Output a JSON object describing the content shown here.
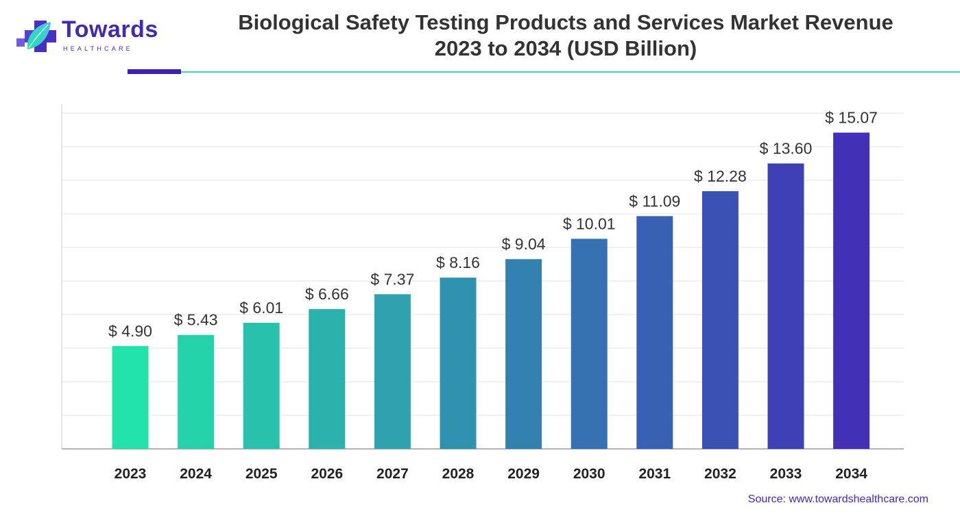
{
  "header": {
    "logo_name": "Towards",
    "logo_sub": "HEALTHCARE",
    "logo_icon": "cross-leaf-icon",
    "accent_color": "#3f1fb2",
    "line_color": "#39d4b4"
  },
  "chart_data": {
    "type": "bar",
    "title_line1": "Biological Safety Testing Products and Services Market Revenue",
    "title_line2": "2023 to 2034 (USD Billion)",
    "categories": [
      "2023",
      "2024",
      "2025",
      "2026",
      "2027",
      "2028",
      "2029",
      "2030",
      "2031",
      "2032",
      "2033",
      "2034"
    ],
    "values": [
      4.9,
      5.43,
      6.01,
      6.66,
      7.37,
      8.16,
      9.04,
      10.01,
      11.09,
      12.28,
      13.6,
      15.07
    ],
    "value_labels": [
      "$ 4.90",
      "$ 5.43",
      "$ 6.01",
      "$ 6.66",
      "$ 7.37",
      "$ 8.16",
      "$ 9.04",
      "$ 10.01",
      "$ 11.09",
      "$ 12.28",
      "$ 13.60",
      "$ 15.07"
    ],
    "ylim": [
      0,
      16
    ],
    "grid": true,
    "gradient_start": "#22e3aa",
    "gradient_end": "#4230b6",
    "xlabel": "",
    "ylabel": ""
  },
  "footer": {
    "source": "Source: www.towardshealthcare.com"
  }
}
